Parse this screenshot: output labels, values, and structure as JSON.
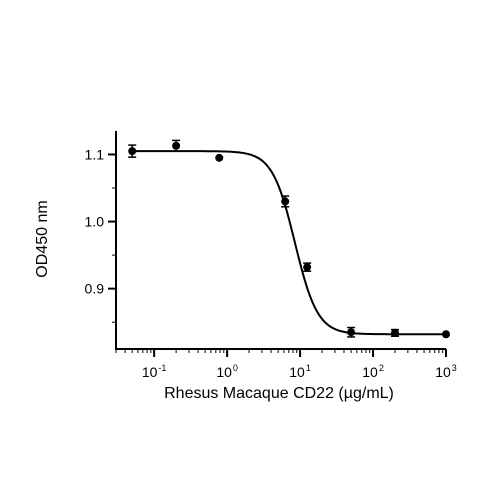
{
  "chart_data": {
    "type": "scatter",
    "xlabel": "Rhesus Macaque CD22 (µg/mL)",
    "ylabel": "OD450 nm",
    "x_scale": "log",
    "xlim": [
      0.03,
      1000
    ],
    "ylim": [
      0.81,
      1.135
    ],
    "x_ticks": [
      {
        "base": "10",
        "exp": "-1",
        "value": 0.1
      },
      {
        "base": "10",
        "exp": "0",
        "value": 1
      },
      {
        "base": "10",
        "exp": "1",
        "value": 10
      },
      {
        "base": "10",
        "exp": "2",
        "value": 100
      },
      {
        "base": "10",
        "exp": "3",
        "value": 1000
      }
    ],
    "y_ticks": [
      {
        "label": "0.9",
        "value": 0.9
      },
      {
        "label": "1.0",
        "value": 1.0
      },
      {
        "label": "1.1",
        "value": 1.1
      }
    ],
    "grid": false,
    "marker_color": "#000000",
    "points": [
      {
        "x": 0.05,
        "y": 1.105,
        "err": 0.009
      },
      {
        "x": 0.2,
        "y": 1.113,
        "err": 0.008
      },
      {
        "x": 0.78,
        "y": 1.095,
        "err": 0.0
      },
      {
        "x": 6.25,
        "y": 1.03,
        "err": 0.008
      },
      {
        "x": 12.5,
        "y": 0.932,
        "err": 0.006
      },
      {
        "x": 50,
        "y": 0.835,
        "err": 0.007
      },
      {
        "x": 200,
        "y": 0.834,
        "err": 0.005
      },
      {
        "x": 1000,
        "y": 0.832,
        "err": 0.0
      }
    ],
    "fit": {
      "model": "4PL",
      "top": 1.105,
      "bottom": 0.832,
      "ec50": 8.5,
      "hill": 2.8
    }
  }
}
